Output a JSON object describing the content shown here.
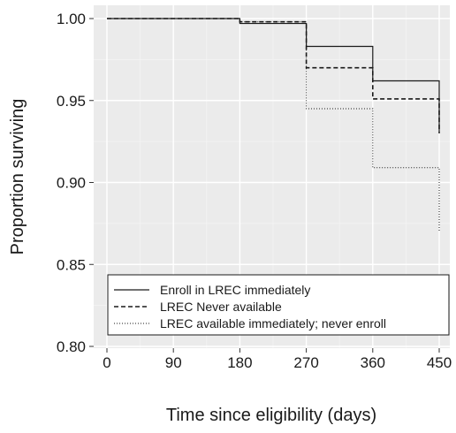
{
  "chart_data": {
    "type": "line",
    "step": true,
    "title": "",
    "xlabel": "Time since eligibility (days)",
    "ylabel": "Proportion surviving",
    "xlim": [
      0,
      450
    ],
    "ylim": [
      0.8,
      1.0
    ],
    "xticks": [
      0,
      90,
      180,
      270,
      360,
      450
    ],
    "yticks": [
      0.8,
      0.85,
      0.9,
      0.95,
      1.0
    ],
    "xtick_labels": [
      "0",
      "90",
      "180",
      "270",
      "360",
      "450"
    ],
    "ytick_labels": [
      "0.80",
      "0.85",
      "0.90",
      "0.95",
      "1.00"
    ],
    "grid": true,
    "legend_position": "bottom-inside",
    "series": [
      {
        "name": "Enroll in LREC immediately",
        "line_style": "solid",
        "x": [
          0,
          180,
          270,
          360,
          450,
          450
        ],
        "y": [
          1.0,
          0.997,
          0.983,
          0.962,
          0.962,
          0.931
        ]
      },
      {
        "name": "LREC Never available",
        "line_style": "dashed",
        "x": [
          0,
          180,
          270,
          360,
          450,
          450
        ],
        "y": [
          1.0,
          0.998,
          0.97,
          0.951,
          0.951,
          0.93
        ]
      },
      {
        "name": "LREC available immediately; never enroll",
        "line_style": "dotted",
        "x": [
          0,
          180,
          270,
          360,
          450,
          450
        ],
        "y": [
          1.0,
          0.998,
          0.945,
          0.909,
          0.909,
          0.87
        ]
      }
    ]
  }
}
